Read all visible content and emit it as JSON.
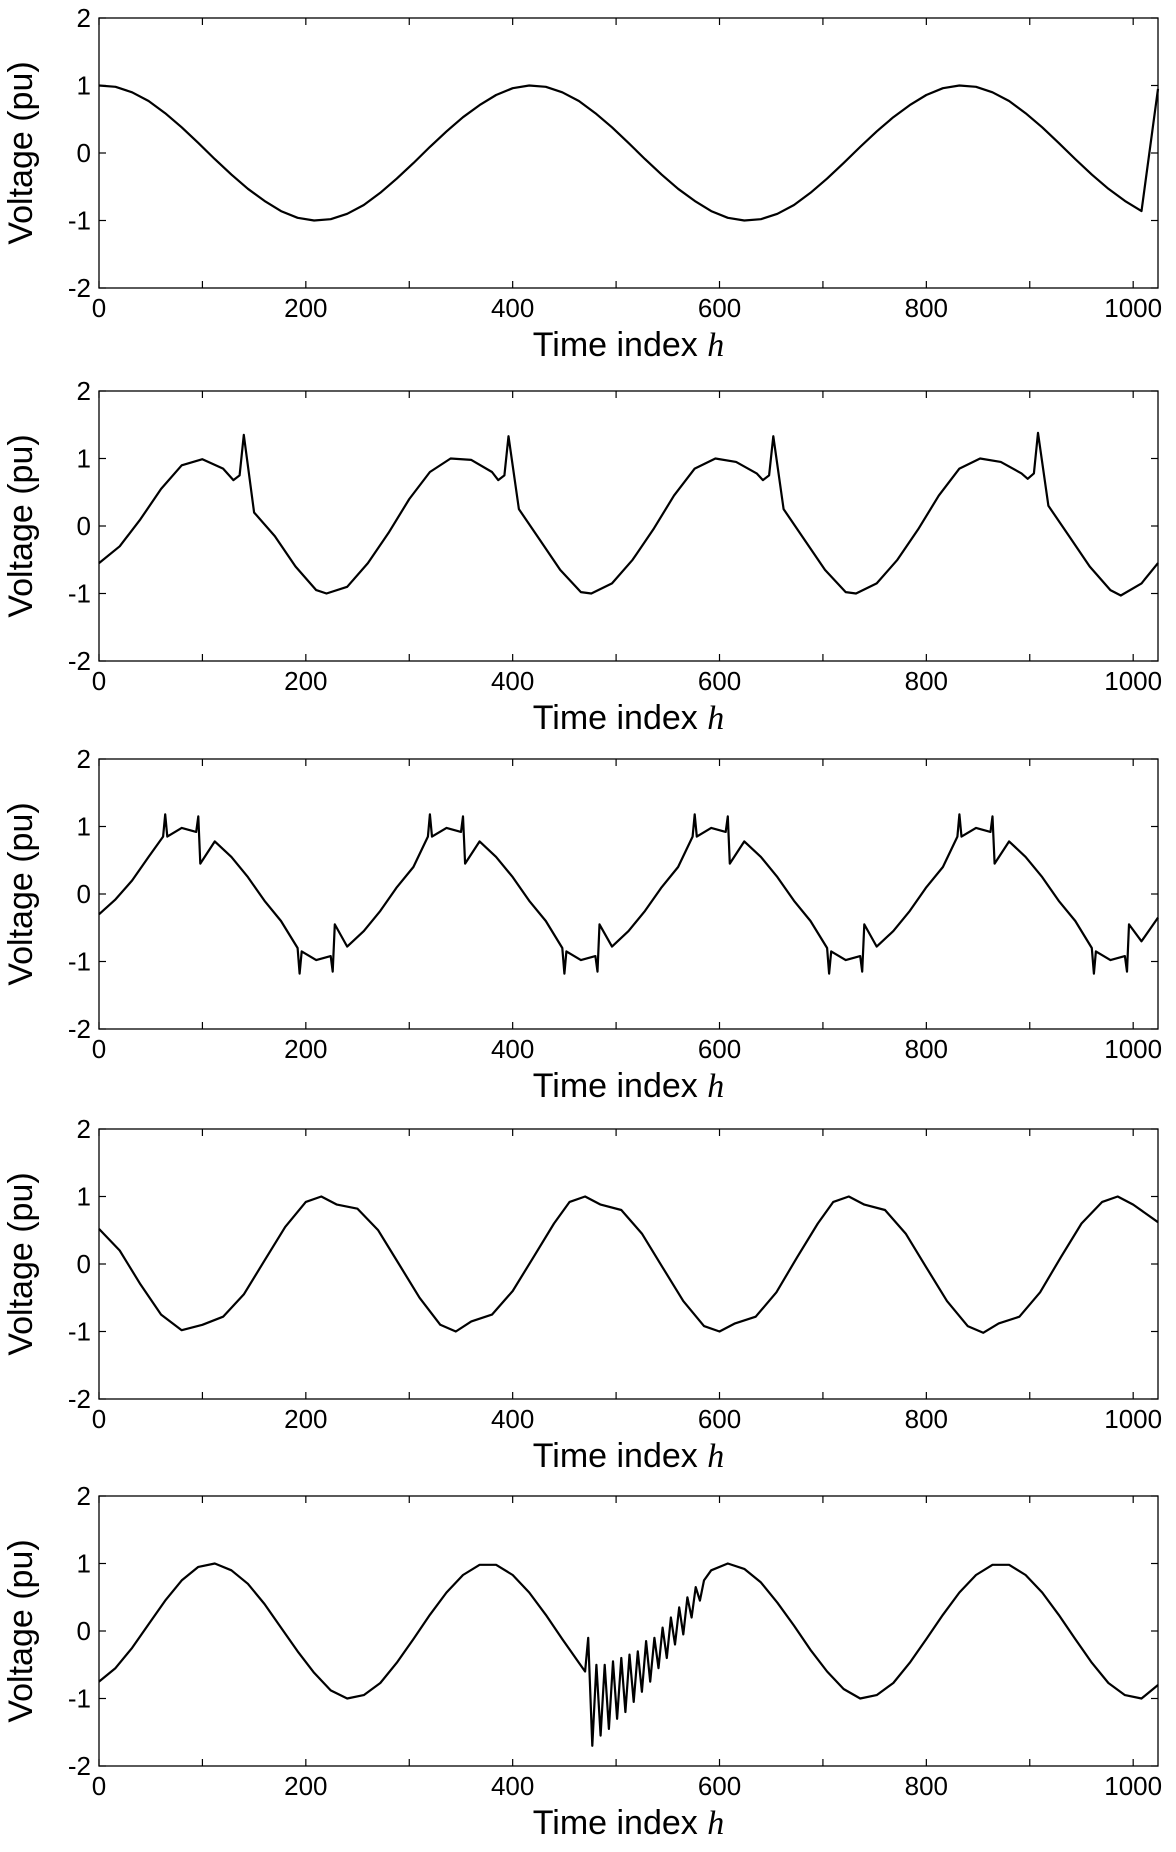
{
  "chart_data": [
    {
      "type": "line",
      "xlabel": "Time index",
      "xlabel_var": "h",
      "ylabel": "Voltage (pu)",
      "xlim": [
        0,
        1024
      ],
      "ylim": [
        -2,
        2
      ],
      "xticks": [
        "0",
        "200",
        "400",
        "600",
        "800",
        "1000"
      ],
      "yticks": [
        "-2",
        "-1",
        "0",
        "1",
        "2"
      ],
      "grid": false,
      "line_color": "#000000",
      "series": [
        {
          "x": [
            0,
            16,
            32,
            48,
            64,
            80,
            96,
            112,
            128,
            144,
            160,
            176,
            192,
            208,
            224,
            240,
            256,
            272,
            288,
            304,
            320,
            336,
            352,
            368,
            384,
            400,
            416,
            432,
            448,
            464,
            480,
            496,
            512,
            528,
            544,
            560,
            576,
            592,
            608,
            624,
            640,
            656,
            672,
            688,
            704,
            720,
            736,
            752,
            768,
            784,
            800,
            816,
            832,
            848,
            864,
            880,
            896,
            912,
            928,
            944,
            960,
            976,
            992,
            1008,
            1024
          ],
          "values": [
            1.0,
            0.98,
            0.9,
            0.77,
            0.59,
            0.38,
            0.15,
            -0.09,
            -0.32,
            -0.53,
            -0.71,
            -0.86,
            -0.96,
            -1.0,
            -0.98,
            -0.9,
            -0.77,
            -0.59,
            -0.38,
            -0.15,
            0.09,
            0.32,
            0.53,
            0.71,
            0.86,
            0.96,
            1.0,
            0.98,
            0.9,
            0.77,
            0.59,
            0.38,
            0.15,
            -0.09,
            -0.32,
            -0.53,
            -0.71,
            -0.86,
            -0.96,
            -1.0,
            -0.98,
            -0.9,
            -0.77,
            -0.59,
            -0.38,
            -0.15,
            0.09,
            0.32,
            0.53,
            0.71,
            0.86,
            0.96,
            1.0,
            0.98,
            0.9,
            0.77,
            0.59,
            0.38,
            0.15,
            -0.09,
            -0.32,
            -0.53,
            -0.71,
            -0.86,
            0.95
          ]
        }
      ]
    },
    {
      "type": "line",
      "xlabel": "Time index",
      "xlabel_var": "h",
      "ylabel": "Voltage (pu)",
      "xlim": [
        0,
        1024
      ],
      "ylim": [
        -2,
        2
      ],
      "xticks": [
        "0",
        "200",
        "400",
        "600",
        "800",
        "1000"
      ],
      "yticks": [
        "-2",
        "-1",
        "0",
        "1",
        "2"
      ],
      "grid": false,
      "line_color": "#000000",
      "series": [
        {
          "x": [
            0,
            20,
            40,
            60,
            80,
            100,
            120,
            130,
            136,
            140,
            150,
            170,
            190,
            210,
            220,
            240,
            260,
            280,
            300,
            320,
            340,
            360,
            380,
            386,
            392,
            396,
            406,
            426,
            446,
            466,
            476,
            496,
            516,
            536,
            556,
            576,
            596,
            616,
            636,
            642,
            648,
            652,
            662,
            682,
            702,
            722,
            732,
            752,
            772,
            792,
            812,
            832,
            852,
            872,
            892,
            898,
            904,
            908,
            918,
            938,
            958,
            978,
            988,
            1008,
            1024
          ],
          "values": [
            -0.55,
            -0.3,
            0.1,
            0.55,
            0.9,
            0.99,
            0.85,
            0.68,
            0.75,
            1.35,
            0.2,
            -0.15,
            -0.6,
            -0.95,
            -1.0,
            -0.9,
            -0.55,
            -0.1,
            0.4,
            0.8,
            1.0,
            0.98,
            0.8,
            0.68,
            0.75,
            1.33,
            0.25,
            -0.2,
            -0.65,
            -0.98,
            -1.0,
            -0.85,
            -0.5,
            -0.05,
            0.45,
            0.85,
            1.0,
            0.95,
            0.78,
            0.68,
            0.75,
            1.33,
            0.25,
            -0.2,
            -0.65,
            -0.98,
            -1.0,
            -0.85,
            -0.5,
            -0.05,
            0.45,
            0.85,
            1.0,
            0.95,
            0.78,
            0.7,
            0.78,
            1.38,
            0.3,
            -0.15,
            -0.6,
            -0.95,
            -1.03,
            -0.85,
            -0.55
          ]
        }
      ]
    },
    {
      "type": "line",
      "xlabel": "Time index",
      "xlabel_var": "h",
      "ylabel": "Voltage (pu)",
      "xlim": [
        0,
        1024
      ],
      "ylim": [
        -2,
        2
      ],
      "xticks": [
        "0",
        "200",
        "400",
        "600",
        "800",
        "1000"
      ],
      "yticks": [
        "-2",
        "-1",
        "0",
        "1",
        "2"
      ],
      "grid": false,
      "line_color": "#000000",
      "series": [
        {
          "x": [
            0,
            16,
            32,
            48,
            62,
            64,
            66,
            80,
            94,
            96,
            98,
            112,
            128,
            144,
            160,
            176,
            192,
            194,
            196,
            210,
            224,
            226,
            228,
            240,
            256,
            272,
            288,
            304,
            318,
            320,
            322,
            336,
            350,
            352,
            354,
            368,
            384,
            400,
            416,
            432,
            448,
            450,
            452,
            466,
            480,
            482,
            484,
            496,
            512,
            528,
            544,
            560,
            574,
            576,
            578,
            592,
            606,
            608,
            610,
            624,
            640,
            656,
            672,
            688,
            704,
            706,
            708,
            722,
            736,
            738,
            740,
            752,
            768,
            784,
            800,
            816,
            830,
            832,
            834,
            848,
            862,
            864,
            866,
            880,
            896,
            912,
            928,
            944,
            960,
            962,
            964,
            978,
            992,
            994,
            996,
            1008,
            1024
          ],
          "values": [
            -0.3,
            -0.08,
            0.2,
            0.55,
            0.85,
            1.18,
            0.85,
            0.98,
            0.92,
            1.15,
            0.45,
            0.78,
            0.55,
            0.25,
            -0.1,
            -0.4,
            -0.8,
            -1.18,
            -0.85,
            -0.98,
            -0.92,
            -1.15,
            -0.45,
            -0.78,
            -0.55,
            -0.25,
            0.1,
            0.4,
            0.85,
            1.18,
            0.85,
            0.98,
            0.92,
            1.15,
            0.45,
            0.78,
            0.55,
            0.25,
            -0.1,
            -0.4,
            -0.8,
            -1.18,
            -0.85,
            -0.98,
            -0.92,
            -1.15,
            -0.45,
            -0.78,
            -0.55,
            -0.25,
            0.1,
            0.4,
            0.85,
            1.18,
            0.85,
            0.98,
            0.92,
            1.15,
            0.45,
            0.78,
            0.55,
            0.25,
            -0.1,
            -0.4,
            -0.8,
            -1.18,
            -0.85,
            -0.98,
            -0.92,
            -1.15,
            -0.45,
            -0.78,
            -0.55,
            -0.25,
            0.1,
            0.4,
            0.85,
            1.18,
            0.85,
            0.98,
            0.92,
            1.15,
            0.45,
            0.78,
            0.55,
            0.25,
            -0.1,
            -0.4,
            -0.8,
            -1.18,
            -0.85,
            -0.98,
            -0.92,
            -1.15,
            -0.45,
            -0.7,
            -0.35
          ]
        }
      ]
    },
    {
      "type": "line",
      "xlabel": "Time index",
      "xlabel_var": "h",
      "ylabel": "Voltage (pu)",
      "xlim": [
        0,
        1024
      ],
      "ylim": [
        -2,
        2
      ],
      "xticks": [
        "0",
        "200",
        "400",
        "600",
        "800",
        "1000"
      ],
      "yticks": [
        "-2",
        "-1",
        "0",
        "1",
        "2"
      ],
      "grid": false,
      "line_color": "#000000",
      "series": [
        {
          "x": [
            0,
            20,
            40,
            60,
            80,
            100,
            120,
            140,
            160,
            180,
            200,
            215,
            230,
            250,
            270,
            290,
            310,
            330,
            345,
            360,
            380,
            400,
            420,
            440,
            455,
            470,
            485,
            505,
            525,
            545,
            565,
            585,
            600,
            615,
            635,
            655,
            675,
            695,
            710,
            725,
            740,
            760,
            780,
            800,
            820,
            840,
            855,
            870,
            890,
            910,
            930,
            950,
            970,
            985,
            1000,
            1024
          ],
          "values": [
            0.52,
            0.2,
            -0.3,
            -0.75,
            -0.98,
            -0.9,
            -0.78,
            -0.45,
            0.05,
            0.55,
            0.92,
            1.0,
            0.88,
            0.82,
            0.5,
            0.0,
            -0.5,
            -0.9,
            -1.0,
            -0.85,
            -0.75,
            -0.4,
            0.1,
            0.6,
            0.92,
            1.0,
            0.88,
            0.8,
            0.45,
            -0.05,
            -0.55,
            -0.92,
            -1.0,
            -0.88,
            -0.78,
            -0.42,
            0.1,
            0.6,
            0.92,
            1.0,
            0.88,
            0.8,
            0.45,
            -0.05,
            -0.55,
            -0.92,
            -1.02,
            -0.88,
            -0.78,
            -0.42,
            0.1,
            0.6,
            0.92,
            1.0,
            0.88,
            0.62
          ]
        }
      ]
    },
    {
      "type": "line",
      "xlabel": "Time index",
      "xlabel_var": "h",
      "ylabel": "Voltage (pu)",
      "xlim": [
        0,
        1024
      ],
      "ylim": [
        -2,
        2
      ],
      "xticks": [
        "0",
        "200",
        "400",
        "600",
        "800",
        "1000"
      ],
      "yticks": [
        "-2",
        "-1",
        "0",
        "1",
        "2"
      ],
      "grid": false,
      "line_color": "#000000",
      "series": [
        {
          "x": [
            0,
            16,
            32,
            48,
            64,
            80,
            96,
            112,
            128,
            144,
            160,
            176,
            192,
            208,
            224,
            240,
            256,
            272,
            288,
            304,
            320,
            336,
            352,
            368,
            384,
            400,
            416,
            432,
            448,
            464,
            470,
            473,
            477,
            481,
            485,
            489,
            493,
            497,
            501,
            505,
            509,
            513,
            517,
            521,
            525,
            529,
            533,
            537,
            541,
            545,
            549,
            553,
            557,
            561,
            565,
            569,
            573,
            577,
            581,
            585,
            592,
            608,
            624,
            640,
            656,
            672,
            688,
            704,
            720,
            736,
            752,
            768,
            784,
            800,
            816,
            832,
            848,
            864,
            880,
            896,
            912,
            928,
            944,
            960,
            976,
            992,
            1008,
            1024
          ],
          "values": [
            -0.75,
            -0.55,
            -0.25,
            0.1,
            0.45,
            0.75,
            0.95,
            1.0,
            0.9,
            0.7,
            0.4,
            0.05,
            -0.3,
            -0.62,
            -0.88,
            -1.0,
            -0.95,
            -0.77,
            -0.47,
            -0.12,
            0.24,
            0.57,
            0.83,
            0.98,
            0.98,
            0.83,
            0.57,
            0.24,
            -0.12,
            -0.47,
            -0.6,
            -0.1,
            -1.7,
            -0.5,
            -1.55,
            -0.5,
            -1.45,
            -0.45,
            -1.3,
            -0.4,
            -1.2,
            -0.35,
            -1.05,
            -0.3,
            -0.9,
            -0.15,
            -0.75,
            -0.1,
            -0.55,
            0.05,
            -0.4,
            0.2,
            -0.2,
            0.35,
            -0.05,
            0.5,
            0.2,
            0.65,
            0.45,
            0.75,
            0.9,
            1.0,
            0.92,
            0.72,
            0.42,
            0.08,
            -0.28,
            -0.6,
            -0.86,
            -1.0,
            -0.95,
            -0.77,
            -0.47,
            -0.12,
            0.24,
            0.57,
            0.83,
            0.98,
            0.98,
            0.83,
            0.57,
            0.24,
            -0.12,
            -0.47,
            -0.77,
            -0.95,
            -1.0,
            -0.8
          ]
        }
      ]
    }
  ]
}
